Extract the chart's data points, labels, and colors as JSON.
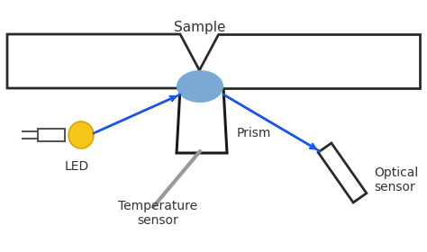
{
  "bg_color": "#ffffff",
  "edge_color": "#2a2a2a",
  "prism_edge_color": "#1a1a1a",
  "sample_color": "#7aaad4",
  "led_color": "#f5c518",
  "led_edge_color": "#d4a800",
  "arrow_color": "#1a56e8",
  "temp_sensor_color": "#888888",
  "optical_sensor_color": "#2a2a2a",
  "label_color": "#333333",
  "label_sample": "Sample",
  "label_led": "LED",
  "label_prism": "Prism",
  "label_temp": "Temperature\nsensor",
  "label_optical": "Optical\nsensor",
  "font_size": 10
}
